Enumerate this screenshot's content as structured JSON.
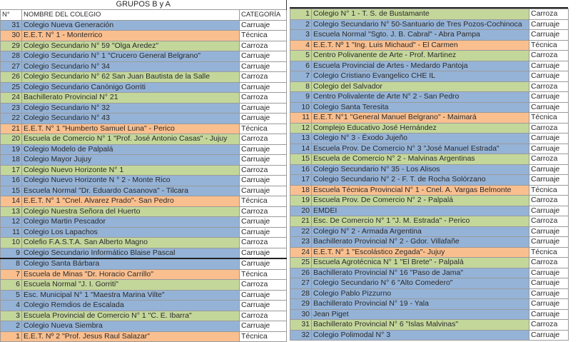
{
  "colors": {
    "Carruaje": "#95b3d7",
    "Técnica": "#fabf8f",
    "Carroza": "#c4d79b"
  },
  "left": {
    "title": "GRUPOS B y A",
    "headers": {
      "num": "N°",
      "name": "NOMBRE DEL COLEGIO",
      "cat": "CATEGORÍA"
    },
    "rows": [
      {
        "n": "31",
        "name": "Colegio Nueva Generación",
        "cat": "Carruaje"
      },
      {
        "n": "30",
        "name": "E.E.T. N° 1 - Monterrico",
        "cat": "Técnica"
      },
      {
        "n": "29",
        "name": "Colegio Secundario N° 59 \"Olga Aredez\"",
        "cat": "Carroza"
      },
      {
        "n": "28",
        "name": "Colegio Secundario N° 1  \"Crucero  General Belgrano\"",
        "cat": "Carruaje"
      },
      {
        "n": "27",
        "name": "Colegio Secundario N° 34",
        "cat": "Carruaje"
      },
      {
        "n": "26",
        "name": "Colegio Secundario N° 62 San Juan Bautista de la Salle",
        "cat": "Carroza"
      },
      {
        "n": "25",
        "name": "Colegio Secundario Canónigo Gorriti",
        "cat": "Carruaje"
      },
      {
        "n": "24",
        "name": "Bachillerato Provincial N° 21",
        "cat": "Carroza"
      },
      {
        "n": "23",
        "name": "Colegio Secundario N° 32",
        "cat": "Carruaje"
      },
      {
        "n": "22",
        "name": "Colegio Secundario N° 43",
        "cat": "Carruaje"
      },
      {
        "n": "21",
        "name": "E.E.T. N° 1 \"Humberto Samuel Luna\" - Perico",
        "cat": "Técnica"
      },
      {
        "n": "20",
        "name": "Escuela de Comercio N° 1 \"Prof. José Antonio Casas\" - Jujuy",
        "cat": "Carroza"
      },
      {
        "n": "19",
        "name": "Colegio Modelo de Palpalá",
        "cat": "Carruaje"
      },
      {
        "n": "18",
        "name": "Colegio Mayor Jujuy",
        "cat": "Carruaje"
      },
      {
        "n": "17",
        "name": "Colegio Nuevo Horizonte N° 1",
        "cat": "Carroza"
      },
      {
        "n": "16",
        "name": "Colegio Nuevo Horizonte N ° 2 - Monte Rico",
        "cat": "Carruaje"
      },
      {
        "n": "15",
        "name": "Escuela Normal \"Dr. Eduardo Casanova\" - Tilcara",
        "cat": "Carruaje"
      },
      {
        "n": "14",
        "name": "E.E.T. N° 1 \"Cnel. Alvarez Prado\"- San Pedro",
        "cat": "Técnica"
      },
      {
        "n": "13",
        "name": "Colegio Nuestra Señora del Huerto",
        "cat": "Carroza"
      },
      {
        "n": "12",
        "name": "Colegio Martin Pescador",
        "cat": "Carruaje"
      },
      {
        "n": "11",
        "name": "Colegio Los Lapachos",
        "cat": "Carruaje"
      },
      {
        "n": "10",
        "name": "Colefio F.A.S.T.A.  San Alberto Magno",
        "cat": "Carroza"
      },
      {
        "n": "9",
        "name": "Colegio Secundario Informático Blaise Pascal",
        "cat": "Carruaje"
      },
      {
        "n": "8",
        "name": "Colegio Santa Bárbara",
        "cat": "Carruaje"
      },
      {
        "n": "7",
        "name": "Escuela de Minas \"Dr. Horacio Carrillo\"",
        "cat": "Técnica"
      },
      {
        "n": "6",
        "name": "Escuela Normal \"J. I. Gorriti\"",
        "cat": "Carroza"
      },
      {
        "n": "5",
        "name": "Esc. Municipal N° 1 \"Maestra Marina Vilte\"",
        "cat": "Carruaje"
      },
      {
        "n": "4",
        "name": "Colegio Remdios de Escalada",
        "cat": "Carruaje"
      },
      {
        "n": "3",
        "name": "Escuela Provincial de Comercio N° 1 \"C. E. Ibarra\"",
        "cat": "Carroza"
      },
      {
        "n": "2",
        "name": "Colegio Nueva Siembra",
        "cat": "Carruaje"
      },
      {
        "n": "1",
        "name": "E.E.T.  Nº 2 \"Prof. Jesus Raul Salazar\"",
        "cat": "Técnica"
      }
    ]
  },
  "right": {
    "rows": [
      {
        "n": "1",
        "name": "Colegio N° 1 - T. S. de Bustamante",
        "cat": "Carroza"
      },
      {
        "n": "2",
        "name": "Colegio Secundario N° 50-Santuario de Tres Pozos-Cochinoca",
        "cat": "Carruaje"
      },
      {
        "n": "3",
        "name": "Escuela Normal \"Sgto. J. B. Cabral\" - Abra Pampa",
        "cat": "Carruaje"
      },
      {
        "n": "4",
        "name": "E.E.T.  Nº 1 \"Ing. Luis Michaud\" - El Carmen",
        "cat": "Técnica"
      },
      {
        "n": "5",
        "name": "Centro Polivanente de Arte - Prof. Martinez",
        "cat": "Carroza"
      },
      {
        "n": "6",
        "name": "Escuela Provincial de Artes - Medardo Pantoja",
        "cat": "Carruaje"
      },
      {
        "n": "7",
        "name": "Colegio Cristiano Evangelico CHE IL",
        "cat": "Carruaje"
      },
      {
        "n": "8",
        "name": "Colegio del Salvador",
        "cat": "Carroza"
      },
      {
        "n": "9",
        "name": "Centro Polivalente de Arte N° 2 - San Pedro",
        "cat": "Carruaje"
      },
      {
        "n": "10",
        "name": "Colegio Santa Teresita",
        "cat": "Carruaje"
      },
      {
        "n": "11",
        "name": "E.E.T. N°1 \"General Manuel Belgrano\" - Maimará",
        "cat": "Técnica"
      },
      {
        "n": "12",
        "name": "Complejo Educativo José Hernández",
        "cat": "Carroza"
      },
      {
        "n": "13",
        "name": "Colegio N° 3 - Éxodo Jujeño",
        "cat": "Carruaje"
      },
      {
        "n": "14",
        "name": "Escuela Prov. De Comercio N° 3 \"José Manuel Estrada\"",
        "cat": "Carruaje"
      },
      {
        "n": "15",
        "name": "Escuela de Comercio N° 2 - Malvinas Argentinas",
        "cat": "Carroza"
      },
      {
        "n": "16",
        "name": "Colegio Secundario N° 35 - Los Alisos",
        "cat": "Carruaje"
      },
      {
        "n": "17",
        "name": "Colegio Secundario N° 2 - F. T. de Rocha Solórzano",
        "cat": "Carruaje"
      },
      {
        "n": "18",
        "name": "Escuela Técnica Provincial N° 1 - Cnel. A. Vargas Belmonte",
        "cat": "Técnica"
      },
      {
        "n": "19",
        "name": "Escuela Prov. De Comercio N° 2 - Palpalá",
        "cat": "Carroza"
      },
      {
        "n": "20",
        "name": "EMDEI",
        "cat": "Carruaje"
      },
      {
        "n": "21",
        "name": "Esc. De Comercio N° 1 \"J. M. Estrada\" - Perico",
        "cat": "Carroza"
      },
      {
        "n": "22",
        "name": "Colegio N° 2 - Armada Argentina",
        "cat": "Carruaje"
      },
      {
        "n": "23",
        "name": "Bachillerato Provincial N° 2 - Gdor. Villafañe",
        "cat": "Carruaje"
      },
      {
        "n": "24",
        "name": "E.E.T. N° 1 \"Escolástico Zegada\"- Jujuy",
        "cat": "Técnica"
      },
      {
        "n": "25",
        "name": "Escuela Agrotécnica N° 1 \"El Brete\" - Palpalá",
        "cat": "Carroza"
      },
      {
        "n": "26",
        "name": "Bachillerato Provincial N° 16 \"Paso de Jama\"",
        "cat": "Carruaje"
      },
      {
        "n": "27",
        "name": "Colegio Secundario N° 6 \"Alto Comedero\"",
        "cat": "Carruaje"
      },
      {
        "n": "28",
        "name": "Colegio Pablo Pizzurno",
        "cat": "Carruaje"
      },
      {
        "n": "29",
        "name": "Bachillerato Provincial N° 19 - Yala",
        "cat": "Carruaje"
      },
      {
        "n": "30",
        "name": "Jean Piget",
        "cat": "Carruaje"
      },
      {
        "n": "31",
        "name": "Bachillerato Provincial N° 6 \"Islas Malvinas\"",
        "cat": "Carroza"
      },
      {
        "n": "32",
        "name": "Colegio Polimodal N° 3",
        "cat": "Carruaje"
      }
    ]
  }
}
